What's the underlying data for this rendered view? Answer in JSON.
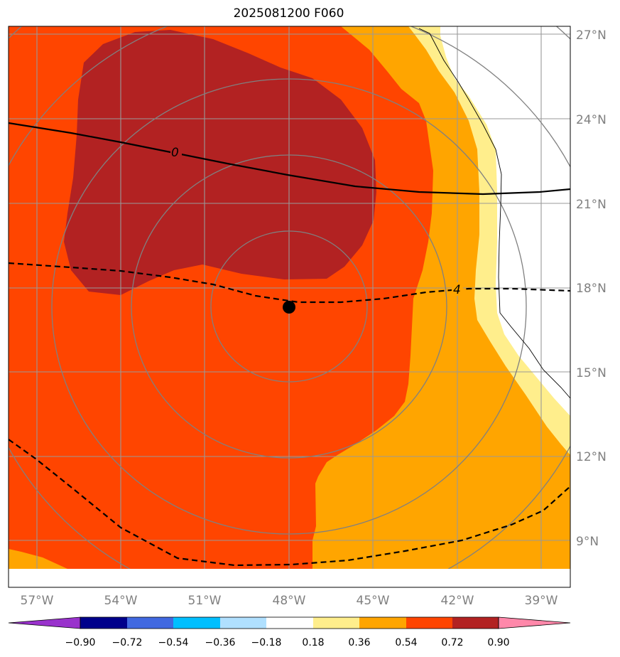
{
  "title": "2025081200 F060",
  "colors": {
    "c_018_036": "#ffee8c",
    "c_036_054": "#ffa500",
    "c_054_072": "#ff4500",
    "c_072_090": "#b22222",
    "c_gt_090": "#ff88aa",
    "c_lt_m090": "#9932cc",
    "c_m090_m072": "#00008b",
    "c_m072_m054": "#4169e1",
    "c_m054_m036": "#00bfff",
    "c_m036_m018": "#b0e0ff",
    "c_m018_018": "#ffffff"
  },
  "lat_labels": [
    "27°N",
    "24°N",
    "21°N",
    "18°N",
    "15°N",
    "12°N",
    "9°N"
  ],
  "lon_labels": [
    "57°W",
    "54°W",
    "51°W",
    "48°W",
    "45°W",
    "42°W",
    "39°W"
  ],
  "contour_labels": [
    "0",
    "4"
  ],
  "colorbar_ticks": [
    "−0.90",
    "−0.72",
    "−0.54",
    "−0.36",
    "−0.18",
    "0.18",
    "0.36",
    "0.54",
    "0.72",
    "0.90"
  ],
  "storm_center": {
    "lat": 17.3,
    "lon": -48.0
  }
}
